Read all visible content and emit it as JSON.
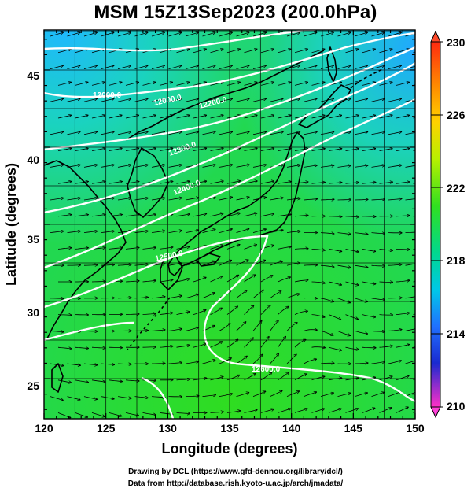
{
  "title": "MSM 15Z13Sep2023 (200.0hPa)",
  "x_axis": {
    "label": "Longitude (degrees)",
    "ticks": [
      "120",
      "125",
      "130",
      "135",
      "140",
      "145",
      "150"
    ]
  },
  "y_axis": {
    "label": "Latitude  (degrees)",
    "ticks": [
      "25",
      "30",
      "35",
      "40",
      "45"
    ]
  },
  "colorbar": {
    "ticks": [
      "230",
      "226",
      "222",
      "218",
      "214",
      "210"
    ]
  },
  "contour_labels": [
    "12000.0",
    "12000.0",
    "12200.0",
    "12300.0",
    "12400.0",
    "12500.0",
    "12600.0"
  ],
  "credits": [
    "Drawing by DCL (https://www.gfd-dennou.org/library/dcl/)",
    "Data from http://database.rish.kyoto-u.ac.jp/arch/jmadata/"
  ],
  "chart_data": {
    "type": "heatmap",
    "title": "MSM 15Z13Sep2023 (200.0hPa)",
    "xlabel": "Longitude (degrees)",
    "ylabel": "Latitude  (degrees)",
    "xlim": [
      120,
      150
    ],
    "ylim": [
      22.4,
      47.6
    ],
    "colorbar_range": [
      210,
      230
    ],
    "colorbar_ticks": [
      230,
      226,
      222,
      218,
      214,
      210
    ],
    "contour_values": [
      12000,
      12200,
      12300,
      12400,
      12500,
      12600
    ],
    "overlay": "streamlines",
    "grid": true
  }
}
